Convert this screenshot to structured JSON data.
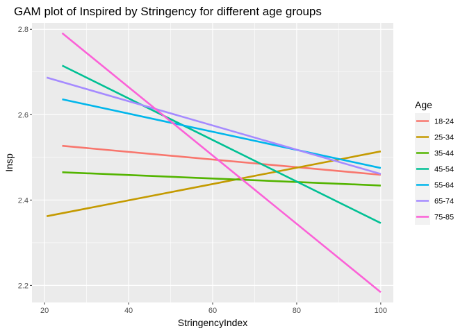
{
  "chart_data": {
    "type": "line",
    "title": "GAM plot of Inspired by Stringency for different age groups",
    "xlabel": "StringencyIndex",
    "ylabel": "Insp",
    "xlim": [
      17,
      103
    ],
    "ylim": [
      2.16,
      2.815
    ],
    "x_ticks": [
      20,
      40,
      60,
      80,
      100
    ],
    "y_ticks": [
      2.2,
      2.4,
      2.6,
      2.8
    ],
    "x_tick_labels": [
      "20",
      "40",
      "60",
      "80",
      "100"
    ],
    "y_tick_labels": [
      "2.2",
      "2.4",
      "2.6",
      "2.8"
    ],
    "background": "#EBEBEB",
    "grid": true,
    "legend_title": "Age",
    "legend_position": "right",
    "series": [
      {
        "name": "18-24",
        "color": "#F8766D",
        "x": [
          24.2,
          100
        ],
        "y": [
          2.527,
          2.459
        ]
      },
      {
        "name": "25-34",
        "color": "#C49A00",
        "x": [
          20.5,
          100
        ],
        "y": [
          2.362,
          2.514
        ]
      },
      {
        "name": "35-44",
        "color": "#53B400",
        "x": [
          24.2,
          100
        ],
        "y": [
          2.465,
          2.434
        ]
      },
      {
        "name": "45-54",
        "color": "#00C094",
        "x": [
          24.2,
          100
        ],
        "y": [
          2.715,
          2.346
        ]
      },
      {
        "name": "55-64",
        "color": "#00B6EB",
        "x": [
          24.2,
          100
        ],
        "y": [
          2.636,
          2.475
        ]
      },
      {
        "name": "65-74",
        "color": "#A58AFF",
        "x": [
          20.5,
          100
        ],
        "y": [
          2.687,
          2.461
        ]
      },
      {
        "name": "75-85",
        "color": "#FB61D7",
        "x": [
          24.2,
          100
        ],
        "y": [
          2.791,
          2.184
        ]
      }
    ]
  }
}
